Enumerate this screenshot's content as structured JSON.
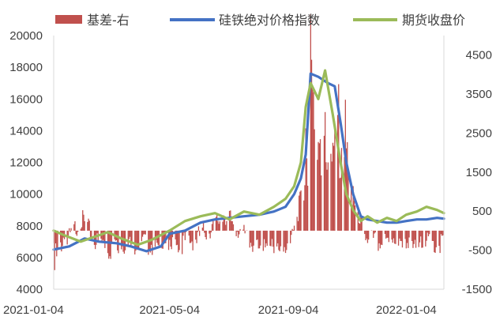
{
  "chart_data": {
    "type": "bar+line",
    "legend": [
      {
        "name": "基差-右",
        "kind": "bar",
        "color": "#C0504D"
      },
      {
        "name": "硅铁绝对价格指数",
        "kind": "line",
        "color": "#4472C4"
      },
      {
        "name": "期货收盘价",
        "kind": "line",
        "color": "#9BBB59"
      }
    ],
    "legend_position": "top",
    "x_ticks": [
      "2021-01-04",
      "2021-05-04",
      "2021-09-04",
      "2022-01-04"
    ],
    "x_range": [
      "2021-01-04",
      "2022-02-12"
    ],
    "y_left": {
      "ticks": [
        4000,
        6000,
        8000,
        10000,
        12000,
        14000,
        16000,
        18000,
        20000
      ],
      "range": [
        4000,
        20000
      ]
    },
    "y_right": {
      "ticks": [
        -1500,
        -500,
        500,
        1500,
        2500,
        3500,
        4500
      ],
      "range": [
        -1500,
        5000
      ]
    },
    "grid": false,
    "series": [
      {
        "name": "硅铁绝对价格指数",
        "axis": "left",
        "x": [
          "2021-01-04",
          "2021-01-20",
          "2021-02-05",
          "2021-02-20",
          "2021-03-10",
          "2021-03-25",
          "2021-04-10",
          "2021-04-25",
          "2021-05-04",
          "2021-05-20",
          "2021-06-05",
          "2021-06-20",
          "2021-07-05",
          "2021-07-20",
          "2021-08-05",
          "2021-08-20",
          "2021-09-01",
          "2021-09-10",
          "2021-09-17",
          "2021-09-22",
          "2021-09-27",
          "2021-10-05",
          "2021-10-15",
          "2021-10-22",
          "2021-10-28",
          "2021-11-03",
          "2021-11-10",
          "2021-11-18",
          "2021-11-25",
          "2021-12-05",
          "2021-12-15",
          "2021-12-25",
          "2022-01-04",
          "2022-01-15",
          "2022-01-25",
          "2022-02-05",
          "2022-02-12"
        ],
        "values": [
          6500,
          6700,
          7200,
          7000,
          6900,
          6700,
          6400,
          6700,
          7500,
          7700,
          8200,
          8400,
          8500,
          8600,
          8700,
          8900,
          9200,
          10000,
          11000,
          12500,
          17600,
          17400,
          17000,
          16800,
          14500,
          12000,
          10000,
          8600,
          8400,
          8300,
          8200,
          8200,
          8300,
          8400,
          8400,
          8500,
          8450
        ]
      },
      {
        "name": "期货收盘价",
        "axis": "left",
        "x": [
          "2021-01-04",
          "2021-01-15",
          "2021-02-01",
          "2021-02-15",
          "2021-03-01",
          "2021-03-15",
          "2021-04-01",
          "2021-04-15",
          "2021-05-04",
          "2021-05-20",
          "2021-06-05",
          "2021-06-20",
          "2021-07-05",
          "2021-07-20",
          "2021-08-05",
          "2021-08-20",
          "2021-09-01",
          "2021-09-10",
          "2021-09-17",
          "2021-09-22",
          "2021-09-27",
          "2021-10-05",
          "2021-10-12",
          "2021-10-20",
          "2021-10-28",
          "2021-11-03",
          "2021-11-10",
          "2021-11-18",
          "2021-11-25",
          "2021-12-05",
          "2021-12-15",
          "2021-12-25",
          "2022-01-04",
          "2022-01-15",
          "2022-01-25",
          "2022-02-05",
          "2022-02-12"
        ],
        "values": [
          7700,
          7400,
          7000,
          7300,
          7600,
          7200,
          6800,
          7100,
          7700,
          8300,
          8600,
          8800,
          8400,
          8900,
          8700,
          9200,
          9700,
          10500,
          12000,
          15500,
          17000,
          16000,
          17800,
          15000,
          12000,
          10000,
          9000,
          8300,
          8600,
          8200,
          8500,
          8300,
          8700,
          8900,
          9200,
          9000,
          8800
        ]
      },
      {
        "name": "基差-右",
        "axis": "right",
        "x": [
          "2021-01-04",
          "2021-02-01",
          "2021-03-01",
          "2021-04-01",
          "2021-05-04",
          "2021-06-01",
          "2021-07-01",
          "2021-08-01",
          "2021-09-01",
          "2021-09-20",
          "2021-09-27",
          "2021-10-05",
          "2021-10-15",
          "2021-10-25",
          "2021-11-05",
          "2021-11-15",
          "2021-12-01",
          "2022-01-04",
          "2022-02-12"
        ],
        "values": [
          -900,
          300,
          -700,
          -300,
          -400,
          -200,
          400,
          -400,
          -600,
          1200,
          4500,
          2800,
          2600,
          4000,
          2500,
          200,
          -300,
          -400,
          -300
        ]
      }
    ]
  }
}
